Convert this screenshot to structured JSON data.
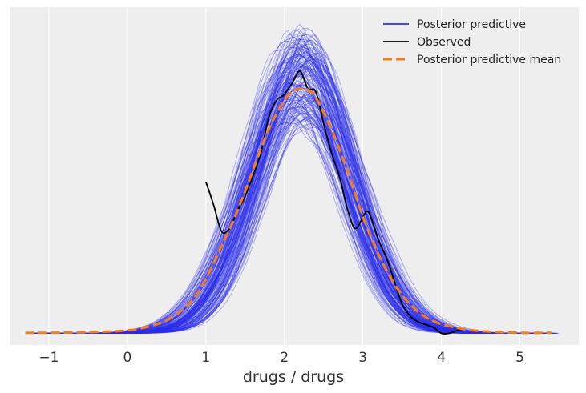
{
  "chart_data": {
    "type": "line",
    "title": "",
    "xlabel": "drugs / drugs",
    "ylabel": "",
    "xlim": [
      -1.5,
      5.75
    ],
    "ylim": [
      -0.02,
      0.56
    ],
    "x_ticks": [
      -1,
      0,
      1,
      2,
      3,
      4,
      5
    ],
    "x_tick_labels": [
      "−1",
      "0",
      "1",
      "2",
      "3",
      "4",
      "5"
    ],
    "grid": "vertical",
    "legend_position": "top-right",
    "colors": {
      "posterior_predictive": "#2a2eec",
      "observed": "#000000",
      "posterior_predictive_mean": "#fa7c17",
      "background": "#eeeeee",
      "grid": "#ffffff"
    },
    "posterior_predictive_samples": 150,
    "series": [
      {
        "name": "Posterior predictive",
        "style": "many thin translucent lines",
        "distribution": {
          "center": 2.2,
          "spread": 0.62,
          "peak_range": [
            0.36,
            0.52
          ]
        }
      },
      {
        "name": "Observed",
        "x": [
          1.0,
          1.1,
          1.2,
          1.3,
          1.4,
          1.5,
          1.6,
          1.7,
          1.8,
          1.9,
          2.0,
          2.1,
          2.2,
          2.3,
          2.4,
          2.5,
          2.6,
          2.7,
          2.8,
          2.9,
          3.0,
          3.05,
          3.1,
          3.2,
          3.3,
          3.4,
          3.5,
          3.6,
          3.7,
          3.8,
          3.9,
          4.0,
          4.1,
          4.2,
          4.28
        ],
        "y": [
          0.26,
          0.22,
          0.175,
          0.18,
          0.21,
          0.235,
          0.27,
          0.31,
          0.37,
          0.4,
          0.41,
          0.43,
          0.45,
          0.42,
          0.415,
          0.36,
          0.31,
          0.27,
          0.215,
          0.18,
          0.2,
          0.21,
          0.2,
          0.16,
          0.13,
          0.09,
          0.05,
          0.03,
          0.02,
          0.015,
          0.01,
          0.0,
          0.0,
          0.005,
          0.008
        ]
      },
      {
        "name": "Posterior predictive mean",
        "style": "dashed",
        "x": [
          -1.3,
          -1.0,
          -0.5,
          0.0,
          0.3,
          0.6,
          0.9,
          1.2,
          1.4,
          1.6,
          1.8,
          2.0,
          2.1,
          2.2,
          2.3,
          2.4,
          2.6,
          2.8,
          3.0,
          3.2,
          3.4,
          3.6,
          3.8,
          4.0,
          4.3,
          4.6,
          5.0,
          5.4
        ],
        "y": [
          0.001,
          0.001,
          0.002,
          0.005,
          0.013,
          0.03,
          0.07,
          0.15,
          0.21,
          0.28,
          0.35,
          0.4,
          0.415,
          0.42,
          0.418,
          0.405,
          0.35,
          0.28,
          0.2,
          0.135,
          0.085,
          0.05,
          0.028,
          0.016,
          0.007,
          0.003,
          0.001,
          0.001
        ]
      }
    ]
  }
}
